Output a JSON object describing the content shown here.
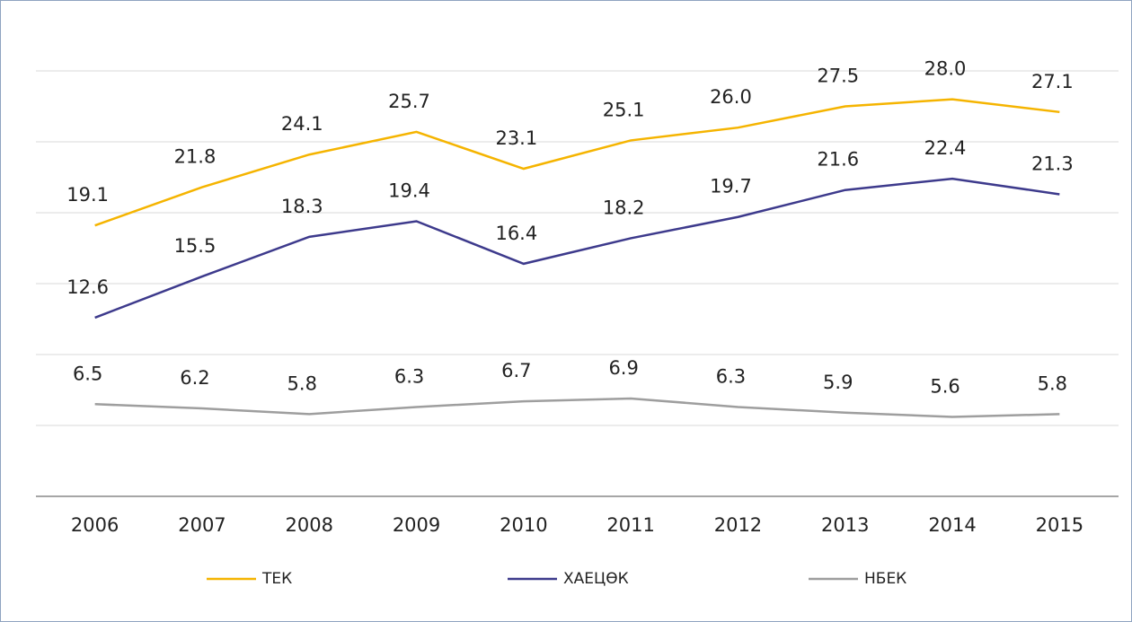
{
  "chart_data": {
    "type": "line",
    "categories": [
      "2006",
      "2007",
      "2008",
      "2009",
      "2010",
      "2011",
      "2012",
      "2013",
      "2014",
      "2015"
    ],
    "series": [
      {
        "name": "ТЕК",
        "color": "#f5b400",
        "values": [
          19.1,
          21.8,
          24.1,
          25.7,
          23.1,
          25.1,
          26.0,
          27.5,
          28.0,
          27.1
        ],
        "value_labels": [
          "19.1",
          "21.8",
          "24.1",
          "25.7",
          "23.1",
          "25.1",
          "26.0",
          "27.5",
          "28.0",
          "27.1"
        ]
      },
      {
        "name": "ХАЕЦӨК",
        "color": "#3d3a8c",
        "values": [
          12.6,
          15.5,
          18.3,
          19.4,
          16.4,
          18.2,
          19.7,
          21.6,
          22.4,
          21.3
        ]
      },
      {
        "name": "НБЕК",
        "color": "#9e9e9e",
        "values": [
          6.5,
          6.2,
          5.8,
          6.3,
          6.7,
          6.9,
          6.3,
          5.9,
          5.6,
          5.8
        ]
      }
    ],
    "ylim": [
      0,
      30
    ],
    "yticks": [
      5,
      10,
      15,
      20,
      25,
      30
    ],
    "grid": true,
    "legend": "bottom"
  }
}
